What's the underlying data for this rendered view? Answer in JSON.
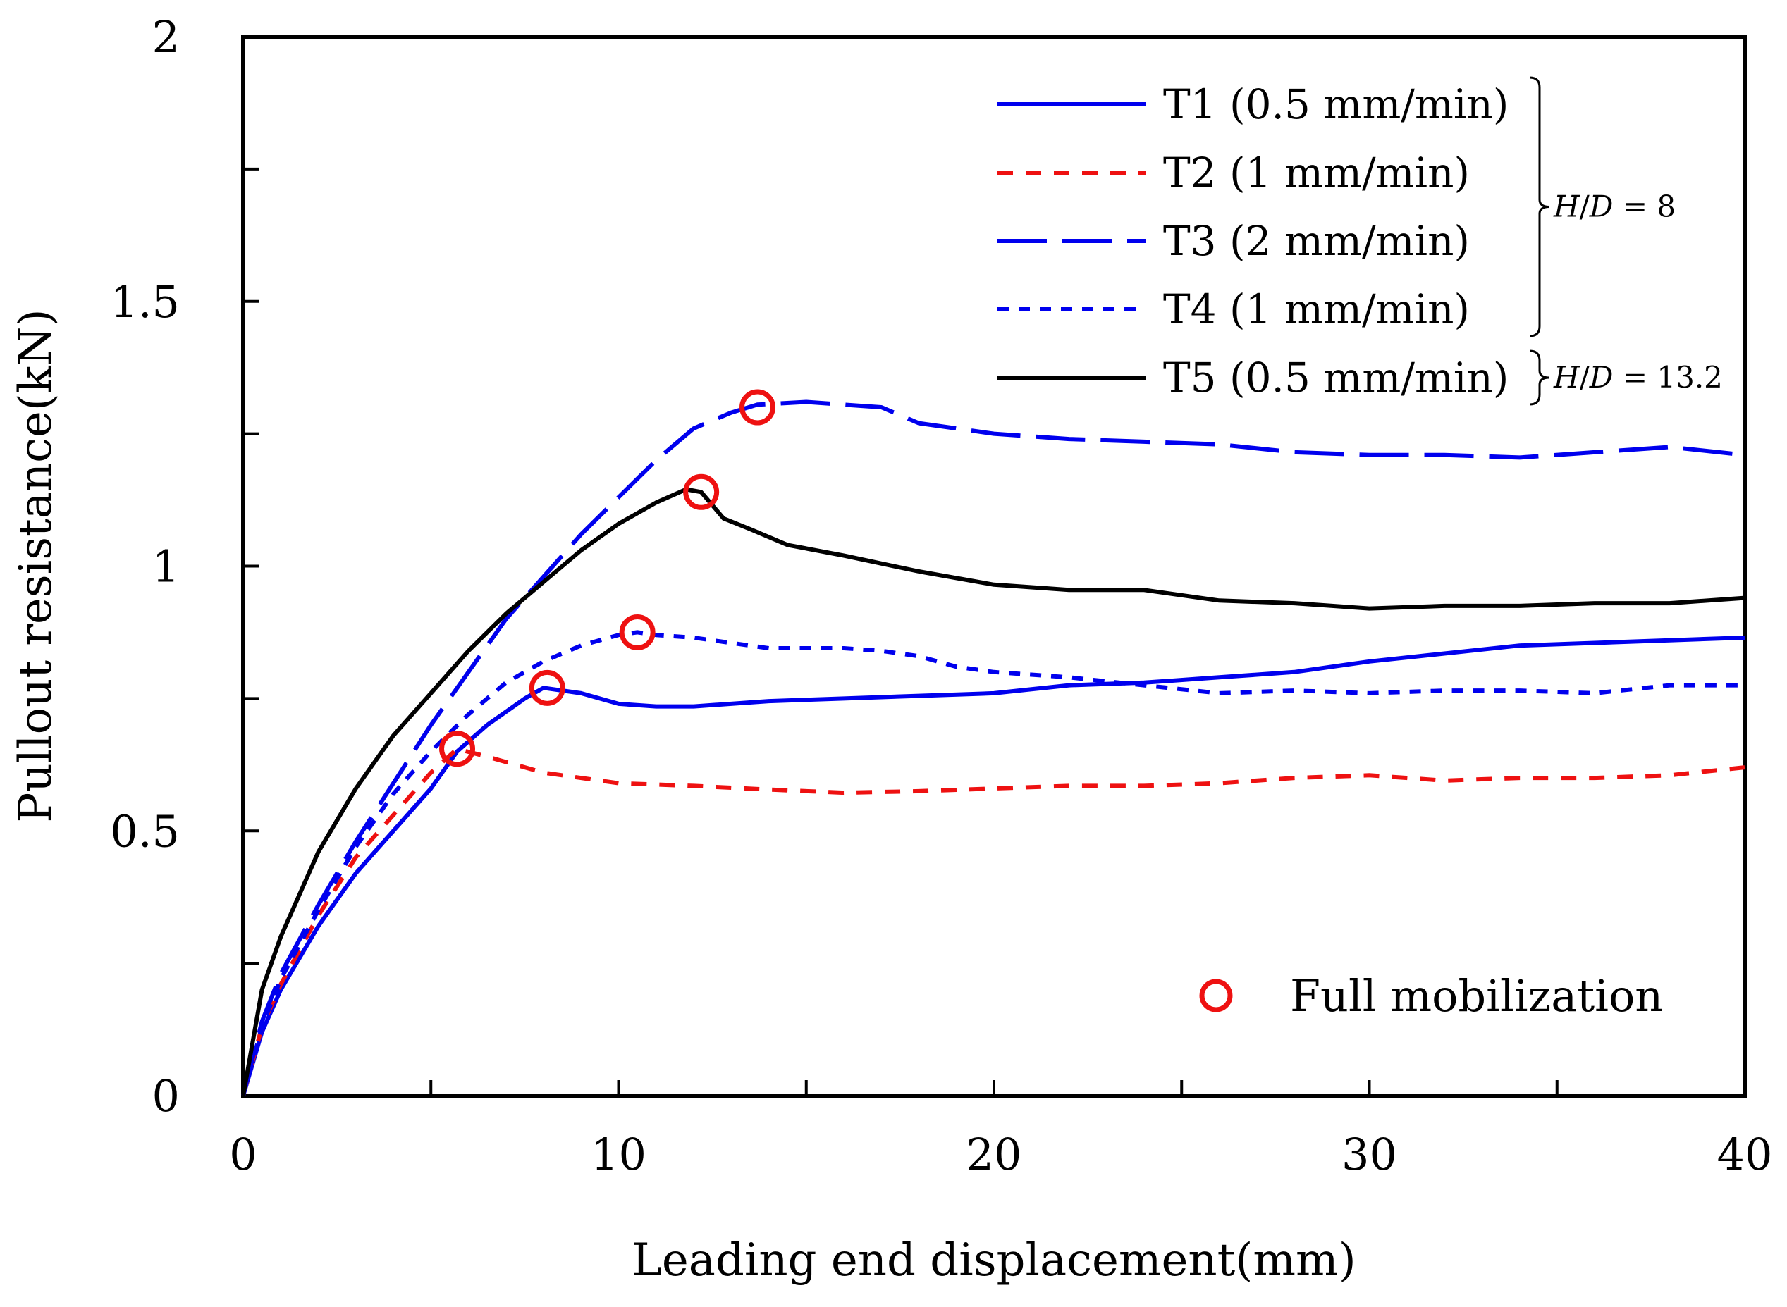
{
  "chart_data": {
    "type": "line",
    "title": "",
    "xlabel": "Leading end displacement(mm)",
    "ylabel": "Pullout resistance(kN)",
    "xlim": [
      0,
      40
    ],
    "ylim": [
      0,
      2
    ],
    "x_ticks": [
      0,
      10,
      20,
      30,
      40
    ],
    "x_tick_labels": [
      "0",
      "10",
      "20",
      "30",
      "40"
    ],
    "y_ticks": [
      0,
      0.5,
      1,
      1.5,
      2
    ],
    "y_tick_labels": [
      "0",
      "0.5",
      "1",
      "1.5",
      "2"
    ],
    "grid": false,
    "legend_position": "top-right",
    "series": [
      {
        "name": "T1 (0.5 mm/min)",
        "color": "#0000ee",
        "dash": "solid",
        "x": [
          0,
          0.5,
          1,
          2,
          3,
          4,
          5,
          5.7,
          6.5,
          7.5,
          8.0,
          9,
          10,
          11,
          12,
          14,
          16,
          18,
          20,
          22,
          24,
          26,
          28,
          30,
          32,
          34,
          36,
          38,
          40
        ],
        "y": [
          0,
          0.12,
          0.2,
          0.32,
          0.42,
          0.5,
          0.58,
          0.65,
          0.7,
          0.75,
          0.77,
          0.76,
          0.74,
          0.735,
          0.735,
          0.745,
          0.75,
          0.755,
          0.76,
          0.775,
          0.78,
          0.79,
          0.8,
          0.82,
          0.835,
          0.85,
          0.855,
          0.86,
          0.865
        ]
      },
      {
        "name": "T2 (1 mm/min)",
        "color": "#ee1111",
        "dash": "short",
        "x": [
          0,
          0.5,
          1,
          2,
          3,
          4,
          5,
          5.7,
          6.5,
          8,
          10,
          12,
          14,
          16,
          18,
          20,
          22,
          24,
          26,
          28,
          30,
          32,
          34,
          36,
          38,
          40
        ],
        "y": [
          0,
          0.13,
          0.21,
          0.34,
          0.45,
          0.53,
          0.61,
          0.655,
          0.64,
          0.61,
          0.59,
          0.585,
          0.578,
          0.572,
          0.575,
          0.58,
          0.585,
          0.585,
          0.59,
          0.6,
          0.605,
          0.595,
          0.6,
          0.6,
          0.605,
          0.62
        ]
      },
      {
        "name": "T3 (2 mm/min)",
        "color": "#0000ee",
        "dash": "long",
        "x": [
          0,
          0.5,
          1,
          2,
          3,
          4,
          5,
          6,
          7,
          8,
          9,
          10,
          11,
          12,
          13,
          13.7,
          15,
          16,
          17,
          18,
          20,
          22,
          24,
          26,
          28,
          30,
          32,
          34,
          36,
          38,
          40
        ],
        "y": [
          0,
          0.14,
          0.23,
          0.36,
          0.48,
          0.59,
          0.7,
          0.8,
          0.9,
          0.98,
          1.06,
          1.13,
          1.2,
          1.26,
          1.29,
          1.305,
          1.31,
          1.305,
          1.3,
          1.27,
          1.25,
          1.24,
          1.235,
          1.23,
          1.215,
          1.21,
          1.21,
          1.205,
          1.215,
          1.225,
          1.21
        ]
      },
      {
        "name": "T4 (1 mm/min)",
        "color": "#0000ee",
        "dash": "dotted",
        "x": [
          0,
          0.5,
          1,
          2,
          3,
          4,
          5,
          6,
          7,
          8,
          9,
          10,
          10.5,
          11,
          12,
          13,
          14,
          15,
          16,
          17,
          18,
          19,
          20,
          22,
          24,
          26,
          28,
          30,
          32,
          34,
          36,
          38,
          40
        ],
        "y": [
          0,
          0.13,
          0.22,
          0.35,
          0.47,
          0.57,
          0.65,
          0.72,
          0.78,
          0.82,
          0.85,
          0.87,
          0.875,
          0.87,
          0.865,
          0.855,
          0.845,
          0.845,
          0.845,
          0.84,
          0.83,
          0.81,
          0.8,
          0.79,
          0.775,
          0.76,
          0.765,
          0.76,
          0.765,
          0.765,
          0.76,
          0.775,
          0.775
        ]
      },
      {
        "name": "T5 (0.5 mm/min)",
        "color": "#000000",
        "dash": "solid",
        "x": [
          0,
          0.5,
          1,
          2,
          3,
          4,
          5,
          6,
          7,
          8,
          9,
          10,
          11,
          11.8,
          12.2,
          12.8,
          13.5,
          14.5,
          16,
          18,
          20,
          22,
          24,
          26,
          28,
          30,
          32,
          34,
          36,
          38,
          40
        ],
        "y": [
          0,
          0.2,
          0.3,
          0.46,
          0.58,
          0.68,
          0.76,
          0.84,
          0.91,
          0.97,
          1.03,
          1.08,
          1.12,
          1.145,
          1.14,
          1.09,
          1.07,
          1.04,
          1.02,
          0.99,
          0.965,
          0.955,
          0.955,
          0.935,
          0.93,
          0.92,
          0.925,
          0.925,
          0.93,
          0.93,
          0.94
        ]
      }
    ],
    "markers": {
      "name": "Full mobilization",
      "color": "#ee1111",
      "points": [
        {
          "x": 5.7,
          "y": 0.655
        },
        {
          "x": 8.1,
          "y": 0.77
        },
        {
          "x": 10.5,
          "y": 0.875
        },
        {
          "x": 12.2,
          "y": 1.14
        },
        {
          "x": 13.7,
          "y": 1.3
        }
      ]
    },
    "brackets": [
      {
        "label_var": "H/D",
        "label_value": "= 8",
        "series_range": [
          0,
          3
        ]
      },
      {
        "label_var": "H/D",
        "label_value": "= 13.2",
        "series_range": [
          4,
          4
        ]
      }
    ]
  }
}
